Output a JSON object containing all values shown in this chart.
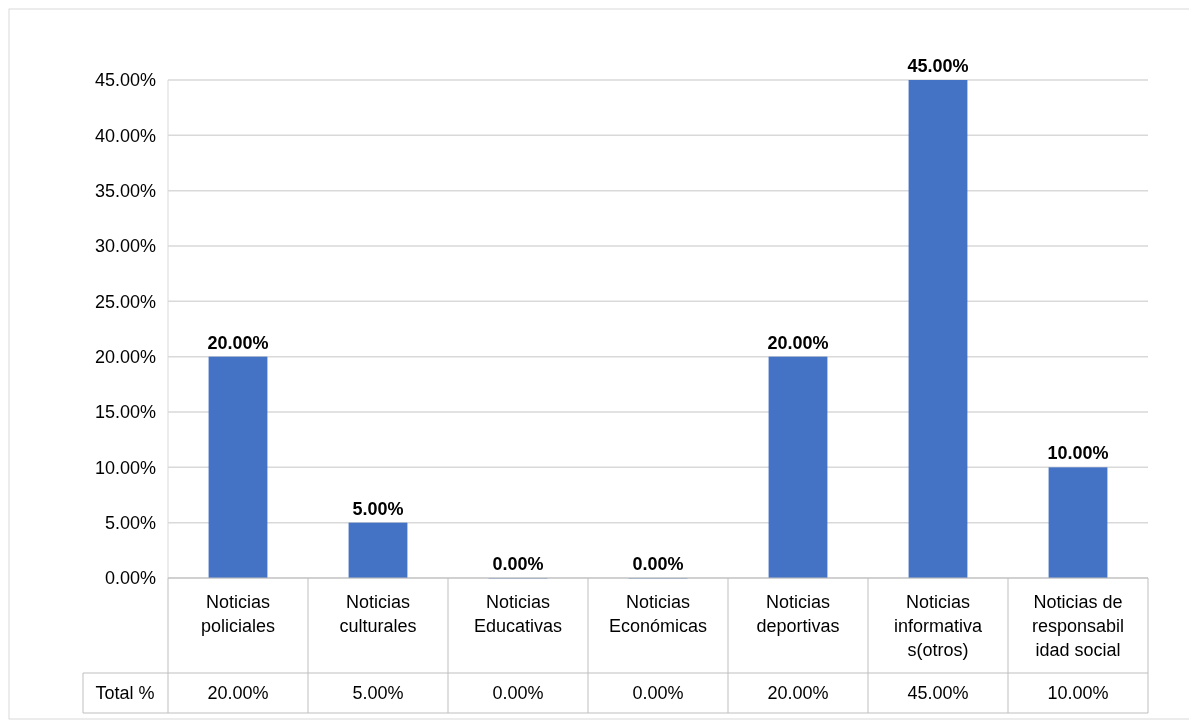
{
  "chart_data": {
    "type": "bar",
    "categories": [
      "Noticias policiales",
      "Noticias culturales",
      "Noticias Educativas",
      "Noticias Económicas",
      "Noticias deportivas",
      "Noticias informativas(otros)",
      "Noticias de responsabilidad social"
    ],
    "series": [
      {
        "name": "Total %",
        "color": "#4472c4",
        "values": [
          20,
          5,
          0,
          0,
          20,
          45,
          10
        ],
        "value_labels": [
          "20.00%",
          "5.00%",
          "0.00%",
          "0.00%",
          "20.00%",
          "45.00%",
          "10.00%"
        ]
      }
    ],
    "ylim": [
      0,
      45
    ],
    "yticks": [
      {
        "value": 0,
        "label": "0.00%"
      },
      {
        "value": 5,
        "label": "5.00%"
      },
      {
        "value": 10,
        "label": "10.00%"
      },
      {
        "value": 15,
        "label": "15.00%"
      },
      {
        "value": 20,
        "label": "20.00%"
      },
      {
        "value": 25,
        "label": "25.00%"
      },
      {
        "value": 30,
        "label": "30.00%"
      },
      {
        "value": 35,
        "label": "35.00%"
      },
      {
        "value": 40,
        "label": "40.00%"
      },
      {
        "value": 45,
        "label": "45.00%"
      }
    ],
    "grid": "y"
  }
}
